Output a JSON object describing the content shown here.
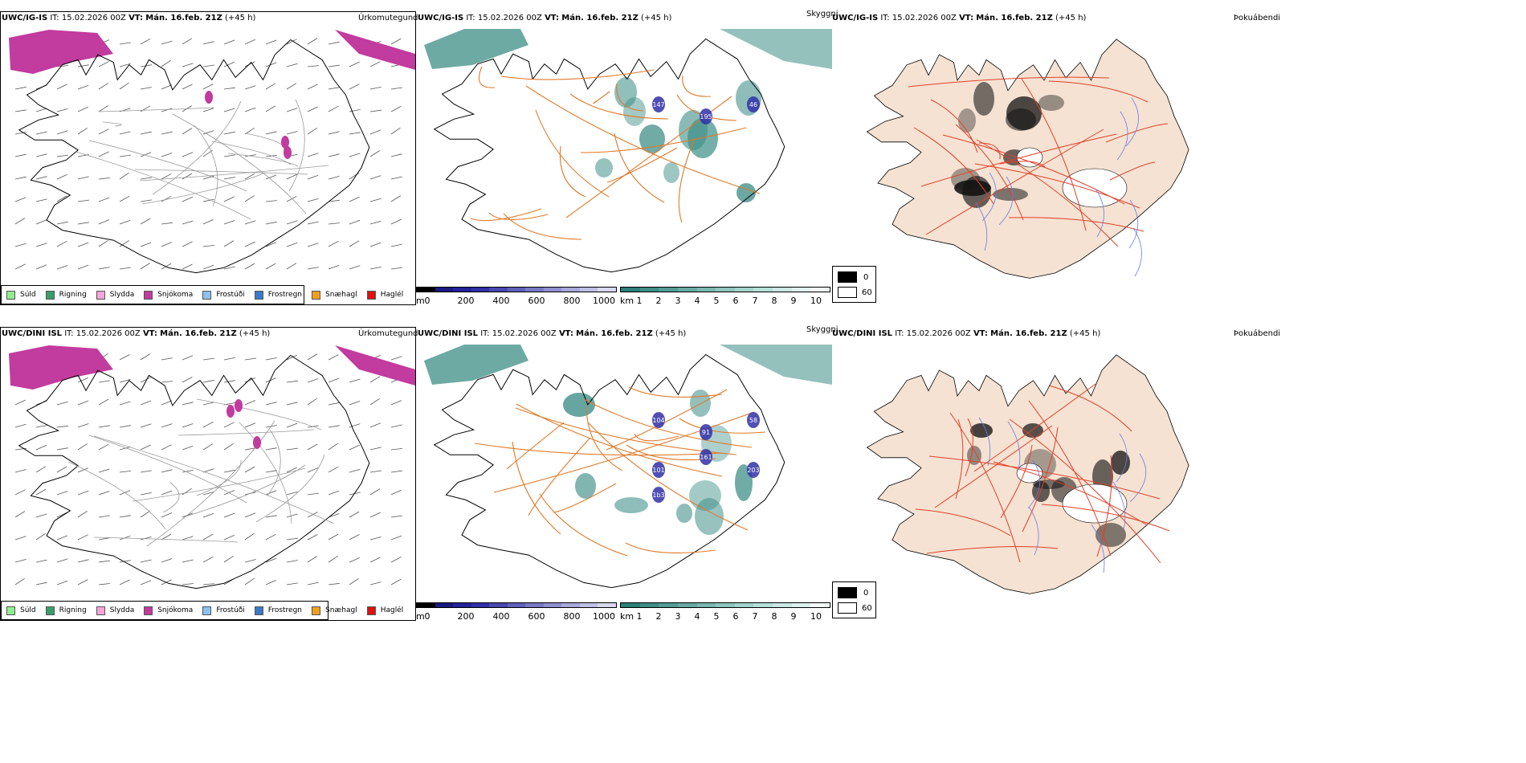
{
  "rows": [
    {
      "model": "UWC/IG-IS",
      "it_label": "IT:",
      "it_value": "15.02.2026 00Z",
      "vt_label": "VT:",
      "vt_value": "Mán. 16.feb. 21Z",
      "lead": "(+45 h)"
    },
    {
      "model": "UWC/DINI ISL",
      "it_label": "IT:",
      "it_value": "15.02.2026 00Z",
      "vt_label": "VT:",
      "vt_value": "Mán. 16.feb. 21Z",
      "lead": "(+45 h)"
    }
  ],
  "panel_titles": {
    "precip": "Úrkomutegund",
    "cloud": "Skyggni",
    "fog": "Þokuábendi"
  },
  "precip_legend": [
    {
      "label": "Súld",
      "color": "#90ee90"
    },
    {
      "label": "Rigning",
      "color": "#3a9e6a"
    },
    {
      "label": "Slydda",
      "color": "#f4a6d7"
    },
    {
      "label": "Snjókoma",
      "color": "#c23b9e"
    },
    {
      "label": "Frostúði",
      "color": "#8ec0f0"
    },
    {
      "label": "Frostregn",
      "color": "#3a7ac8"
    },
    {
      "label": "Snæhagl",
      "color": "#f0a020"
    },
    {
      "label": "Haglél",
      "color": "#e01010"
    }
  ],
  "ceiling_colorbar": {
    "unit": "m",
    "ticks": [
      "0",
      "200",
      "400",
      "600",
      "800",
      "1000"
    ],
    "colors": [
      "#000000",
      "#1a1a80",
      "#23239a",
      "#3030a8",
      "#4848b0",
      "#6060bc",
      "#7878c6",
      "#9090d0",
      "#a8a8da",
      "#c0c0e4",
      "#d8d8ee"
    ]
  },
  "visibility_colorbar": {
    "unit": "km",
    "ticks": [
      "1",
      "2",
      "3",
      "4",
      "5",
      "6",
      "7",
      "8",
      "9",
      "10"
    ],
    "colors": [
      "#2a8078",
      "#3e8e86",
      "#529c94",
      "#66aaa2",
      "#7ab8b0",
      "#8ec6be",
      "#a2d4cc",
      "#b6e0da",
      "#cae8e4",
      "#def2ee",
      "#f2faf8"
    ]
  },
  "fog_legend": {
    "high": "0",
    "low": "60",
    "high_color": "#000000",
    "low_color": "#ffffff"
  },
  "map_labels": {
    "row0": [
      "147",
      "195",
      "46"
    ],
    "row1": [
      "104",
      "91",
      "58",
      "101",
      "161",
      "203",
      "1b3"
    ]
  },
  "colors": {
    "land_fill": "#f5e2d2",
    "road": "#e07a2a",
    "road_red": "#e0402a",
    "river": "#6a7ae8",
    "coast": "#000000",
    "snow": "#c23b9e",
    "vis": "#3e8e86"
  }
}
